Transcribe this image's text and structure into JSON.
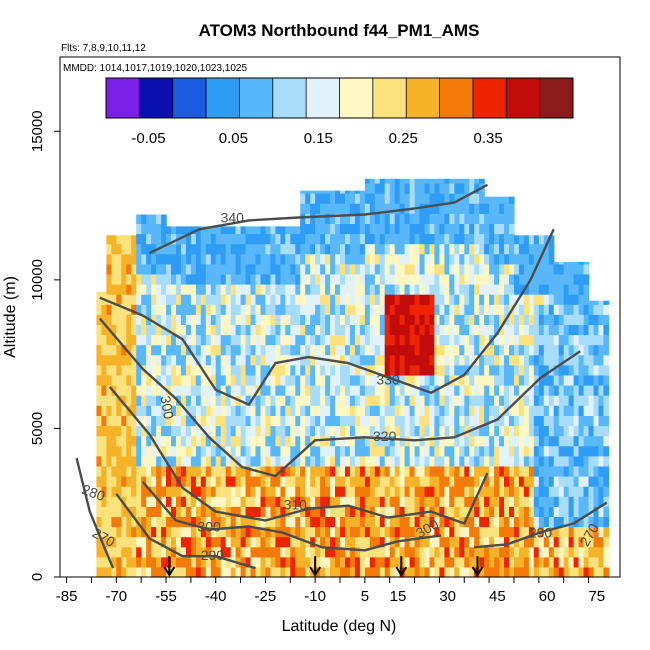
{
  "chart_data": {
    "type": "heatmap",
    "title": "ATOM3 Northbound f44_PM1_AMS",
    "subtitle_flights": "Flts: 7,8,9,10,11,12",
    "subtitle_dates": "MMDD: 1014,1017,1019,1020,1023,1025",
    "xlabel": "Latitude (deg N)",
    "ylabel": "Altitude (m)",
    "xlim": [
      -87,
      82
    ],
    "ylim": [
      0,
      17500
    ],
    "x_tick_labels": [
      "-85",
      "-70",
      "-55",
      "-40",
      "-25",
      "-10",
      "5",
      "15",
      "30",
      "45",
      "60",
      "75"
    ],
    "x_tick_values": [
      -85,
      -70,
      -55,
      -40,
      -25,
      -10,
      5,
      15,
      30,
      45,
      60,
      75
    ],
    "y_tick_labels": [
      "0",
      "5000",
      "10000",
      "15000"
    ],
    "y_tick_values": [
      0,
      5000,
      10000,
      15000
    ],
    "colorbar": {
      "min": -0.1,
      "max": 0.45,
      "tick_labels": [
        "-0.05",
        "0.05",
        "0.15",
        "0.25",
        "0.35"
      ],
      "tick_values": [
        -0.05,
        0.05,
        0.15,
        0.25,
        0.35
      ],
      "colors": [
        "#7a20e8",
        "#0a10b0",
        "#1c5adf",
        "#2f9cf6",
        "#58b8fb",
        "#a8dcfb",
        "#e2f2fb",
        "#fdf7c3",
        "#fbe27c",
        "#f6b229",
        "#f47a0a",
        "#ee2400",
        "#c20c0b",
        "#8c1a1a"
      ]
    },
    "theta_contour_labels": [
      "340",
      "330",
      "320",
      "310",
      "300",
      "300",
      "300",
      "290",
      "290",
      "280",
      "270",
      "270"
    ],
    "surface_arrow_latitudes": [
      -54,
      -10,
      16,
      39
    ],
    "field_description": {
      "upper_troposphere_value": 0.07,
      "mid_troposphere_value": 0.15,
      "boundary_layer_value": 0.28,
      "max_plume": {
        "lat_range": [
          10,
          25
        ],
        "alt_range": [
          6500,
          9500
        ],
        "value": 0.38
      }
    }
  }
}
